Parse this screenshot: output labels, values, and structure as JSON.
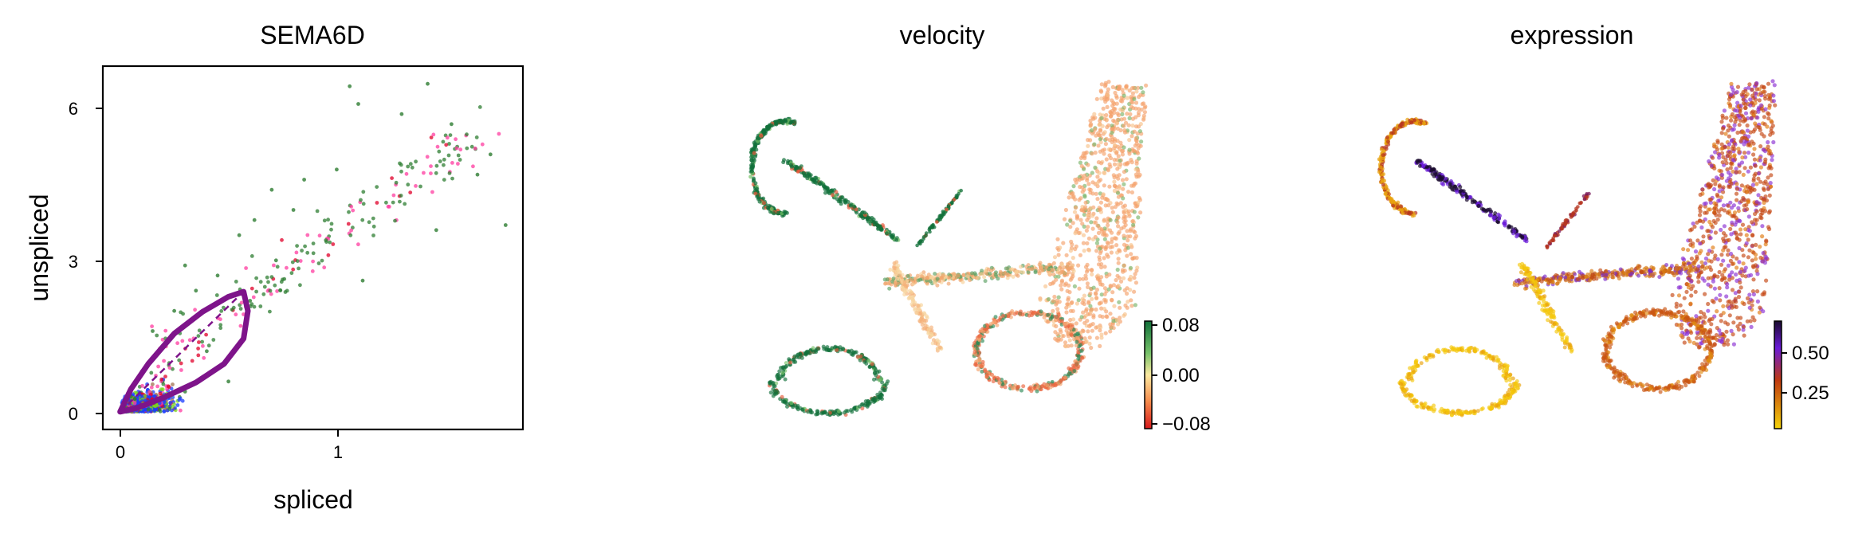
{
  "chart_data": [
    {
      "type": "scatter",
      "title": "SEMA6D",
      "xlabel": "spliced",
      "ylabel": "unspliced",
      "xlim": [
        -0.08,
        1.86
      ],
      "ylim": [
        -0.35,
        6.85
      ],
      "xticks": [
        "0",
        "1"
      ],
      "yticks": [
        "0",
        "3",
        "6"
      ],
      "grid": false,
      "colors": [
        "#2e7d32",
        "#ff3ca0",
        "#e0002a",
        "#1a3cff",
        "#7cd51e",
        "#a07050",
        "#7e148a"
      ],
      "points": [
        {
          "x": 1.42,
          "y": 6.5
        },
        {
          "x": 1.06,
          "y": 6.45
        },
        {
          "x": 1.1,
          "y": 6.1
        },
        {
          "x": 1.3,
          "y": 5.9
        },
        {
          "x": 1.53,
          "y": 5.7
        },
        {
          "x": 1.71,
          "y": 5.1
        },
        {
          "x": 1.65,
          "y": 4.7
        },
        {
          "x": 1.78,
          "y": 3.7
        },
        {
          "x": 1.46,
          "y": 3.6
        },
        {
          "x": 1.0,
          "y": 4.8
        },
        {
          "x": 0.85,
          "y": 4.6
        },
        {
          "x": 0.7,
          "y": 4.4
        },
        {
          "x": 0.8,
          "y": 4.0
        },
        {
          "x": 0.62,
          "y": 3.8
        },
        {
          "x": 1.12,
          "y": 2.6
        },
        {
          "x": 0.95,
          "y": 3.4
        },
        {
          "x": 0.55,
          "y": 3.5
        },
        {
          "x": 0.72,
          "y": 3.0
        },
        {
          "x": 0.6,
          "y": 2.2
        },
        {
          "x": 0.45,
          "y": 2.7
        },
        {
          "x": 0.35,
          "y": 2.4
        },
        {
          "x": 0.3,
          "y": 2.9
        },
        {
          "x": 0.25,
          "y": 2.0
        },
        {
          "x": 0.15,
          "y": 1.6
        },
        {
          "x": 0.5,
          "y": 0.6
        },
        {
          "x": 0.4,
          "y": 1.2
        },
        {
          "x": 0.1,
          "y": 0.8
        },
        {
          "x": 0.3,
          "y": 0.4
        },
        {
          "x": 0.2,
          "y": 0.3
        },
        {
          "x": 0.05,
          "y": 0.3
        }
      ],
      "curve": [
        [
          0.0,
          0.0
        ],
        [
          0.05,
          0.45
        ],
        [
          0.13,
          0.95
        ],
        [
          0.25,
          1.55
        ],
        [
          0.38,
          1.98
        ],
        [
          0.5,
          2.28
        ],
        [
          0.57,
          2.38
        ],
        [
          0.59,
          2.0
        ],
        [
          0.57,
          1.45
        ],
        [
          0.48,
          0.95
        ],
        [
          0.35,
          0.58
        ],
        [
          0.2,
          0.28
        ],
        [
          0.08,
          0.08
        ],
        [
          0.0,
          0.0
        ]
      ]
    },
    {
      "type": "scatter",
      "title": "velocity",
      "colorbar": {
        "ticks": [
          "0.08",
          "0.00",
          "−0.08"
        ],
        "colors": [
          "#11703a",
          "#fbe9a0",
          "#d7191c"
        ]
      }
    },
    {
      "type": "scatter",
      "title": "expression",
      "colorbar": {
        "ticks": [
          "0.50",
          "0.25"
        ],
        "colors": [
          "#1a0a2e",
          "#6a1bd8",
          "#c03a10",
          "#f5d40a"
        ]
      }
    }
  ]
}
